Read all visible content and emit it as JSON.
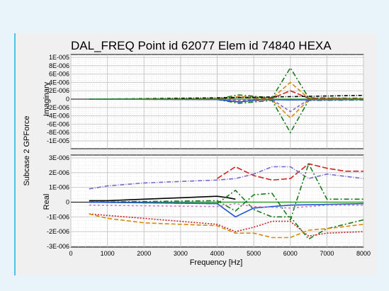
{
  "chart_data": {
    "type": "line",
    "title": "DAL_FREQ Point id 62077 Elem id 74840 HEXA",
    "ylabel_outer": "Subcase 2 GPForce",
    "xlabel": "Frequency [Hz]",
    "x_ticks": [
      "0",
      "1000",
      "2000",
      "3000",
      "4000",
      "5000",
      "6000",
      "7000",
      "8000"
    ],
    "xlim": [
      0,
      8000
    ],
    "grid": true,
    "subplots": [
      {
        "ylabel": "Imaginary",
        "ylim": [
          -1e-05,
          1e-05
        ],
        "y_ticks": [
          "1E-005",
          "8E-006",
          "6E-006",
          "4E-006",
          "2E-006",
          "0",
          "-2E-006",
          "-4E-006",
          "-6E-006",
          "-8E-006",
          "-1E-005"
        ],
        "series": [
          {
            "color": "#1a7a1a",
            "dash": "7,3,2,3",
            "x": [
              500,
              4000,
              4600,
              5500,
              6000,
              6500,
              8000
            ],
            "y": [
              0,
              1e-07,
              1e-06,
              3e-07,
              7.5e-06,
              3e-07,
              2e-07
            ]
          },
          {
            "color": "#1a7a1a",
            "dash": "7,3,2,3",
            "x": [
              500,
              4000,
              4600,
              5500,
              6000,
              6500,
              8000
            ],
            "y": [
              0,
              -1e-07,
              -1e-06,
              -3e-07,
              -8e-06,
              -3e-07,
              -2e-07
            ]
          },
          {
            "color": "#d48a10",
            "dash": "6,3",
            "x": [
              500,
              4000,
              4600,
              5500,
              6000,
              6500,
              8000
            ],
            "y": [
              0,
              1e-07,
              6e-07,
              2e-07,
              4e-06,
              2e-07,
              1e-07
            ]
          },
          {
            "color": "#d48a10",
            "dash": "6,3",
            "x": [
              500,
              4000,
              4600,
              5500,
              6000,
              6500,
              8000
            ],
            "y": [
              0,
              -1e-07,
              -6e-07,
              -2e-07,
              -4.5e-06,
              -2e-07,
              -1e-07
            ]
          },
          {
            "color": "#8866cc",
            "dash": "4,3",
            "x": [
              500,
              4000,
              4600,
              5500,
              6000,
              6500,
              8000
            ],
            "y": [
              0,
              -5e-08,
              -3e-07,
              -1e-07,
              -3e-06,
              -1e-07,
              0
            ]
          },
          {
            "color": "#d42020",
            "dash": "8,3",
            "x": [
              500,
              4000,
              4600,
              5500,
              6000,
              6500,
              8000
            ],
            "y": [
              0,
              5e-08,
              4e-07,
              2e-07,
              2e-06,
              2e-07,
              1e-07
            ]
          },
          {
            "color": "#000000",
            "dash": "5,2,1,2",
            "x": [
              500,
              2000,
              4000,
              6000,
              8000
            ],
            "y": [
              0,
              1e-07,
              3e-07,
              6e-07,
              9e-07
            ]
          },
          {
            "color": "#2255cc",
            "dash": "",
            "x": [
              500,
              4000,
              4600,
              5200,
              6000,
              8000
            ],
            "y": [
              0,
              -1e-07,
              -7e-07,
              -1e-07,
              -2e-07,
              -1e-07
            ]
          },
          {
            "color": "#2ca02c",
            "dash": "",
            "x": [
              500,
              4000,
              6000,
              8000
            ],
            "y": [
              0,
              0,
              0,
              0
            ]
          }
        ]
      },
      {
        "ylabel": "Real",
        "ylim": [
          -3e-06,
          3e-06
        ],
        "y_ticks": [
          "3E-006",
          "2E-006",
          "1E-006",
          "0",
          "-1E-006",
          "-2E-006",
          "-3E-006"
        ],
        "series": [
          {
            "color": "#d42020",
            "dash": "8,3",
            "x": [
              4000,
              4500,
              5000,
              5500,
              6000,
              6500,
              7000,
              7500,
              8000
            ],
            "y": [
              1.6e-06,
              2.4e-06,
              1.8e-06,
              1.5e-06,
              1.6e-06,
              2.6e-06,
              2.3e-06,
              2.1e-06,
              2.1e-06
            ]
          },
          {
            "color": "#7766cc",
            "dash": "6,2,1,2",
            "x": [
              500,
              1000,
              2000,
              3000,
              4000,
              4500,
              5000,
              5500,
              6000,
              6500,
              7000,
              8000
            ],
            "y": [
              9e-07,
              1.1e-06,
              1.3e-06,
              1.4e-06,
              1.5e-06,
              1.6e-06,
              1.9e-06,
              2.4e-06,
              2.4e-06,
              1.6e-06,
              1.9e-06,
              1.6e-06
            ]
          },
          {
            "color": "#000000",
            "dash": "",
            "x": [
              500,
              1000,
              2000,
              3000,
              4000,
              4300,
              4500
            ],
            "y": [
              1e-07,
              1e-07,
              2e-07,
              3e-07,
              4e-07,
              3e-07,
              2e-07
            ]
          },
          {
            "color": "#2ca02c",
            "dash": "",
            "x": [
              500,
              4000,
              6000,
              8000
            ],
            "y": [
              0,
              0,
              0,
              0
            ]
          },
          {
            "color": "#1a7a1a",
            "dash": "7,3,2,3",
            "x": [
              500,
              4000,
              4500,
              5000,
              5500,
              6000,
              6500,
              7000,
              8000
            ],
            "y": [
              0,
              1e-07,
              -6e-07,
              5e-07,
              6e-07,
              -1.2e-06,
              2.6e-06,
              2e-07,
              2e-07
            ]
          },
          {
            "color": "#1a7a1a",
            "dash": "7,3,2,3",
            "x": [
              500,
              4000,
              4500,
              5000,
              5500,
              6000,
              6500,
              7000,
              8000
            ],
            "y": [
              0,
              -1e-07,
              8e-07,
              -5e-07,
              -1e-06,
              -1e-06,
              -2.5e-06,
              -1.8e-06,
              -1.2e-06
            ]
          },
          {
            "color": "#2255cc",
            "dash": "",
            "x": [
              500,
              4000,
              4500,
              5000,
              6000,
              8000
            ],
            "y": [
              0,
              -1e-07,
              -1e-06,
              -4e-07,
              -2e-07,
              -1e-07
            ]
          },
          {
            "color": "#c42020",
            "dash": "2,2",
            "x": [
              500,
              2000,
              3000,
              4000,
              4500,
              5000,
              5500,
              6000,
              6500,
              7000,
              8000
            ],
            "y": [
              -8e-07,
              -1.1e-06,
              -1.3e-06,
              -1.5e-06,
              -2e-06,
              -1.7e-06,
              -1.3e-06,
              -1.3e-06,
              -2.3e-06,
              -2.1e-06,
              -2e-06
            ]
          },
          {
            "color": "#d48a10",
            "dash": "6,3",
            "x": [
              500,
              1000,
              2000,
              3000,
              4000,
              4500,
              5000,
              5500,
              6000,
              6500,
              7000,
              8000
            ],
            "y": [
              -8e-07,
              -1.1e-06,
              -1.4e-06,
              -1.5e-06,
              -1.6e-06,
              -2.1e-06,
              -2.1e-06,
              -2.4e-06,
              -2.4e-06,
              -1.9e-06,
              -1.8e-06,
              -1.5e-06
            ]
          },
          {
            "color": "#cc77cc",
            "dash": "3,3",
            "x": [
              500,
              4000,
              4500,
              5000,
              6000,
              7000,
              8000
            ],
            "y": [
              -2e-07,
              -3e-07,
              -1e-07,
              -3e-07,
              -4e-07,
              -2e-07,
              -2e-07
            ]
          }
        ]
      }
    ]
  }
}
